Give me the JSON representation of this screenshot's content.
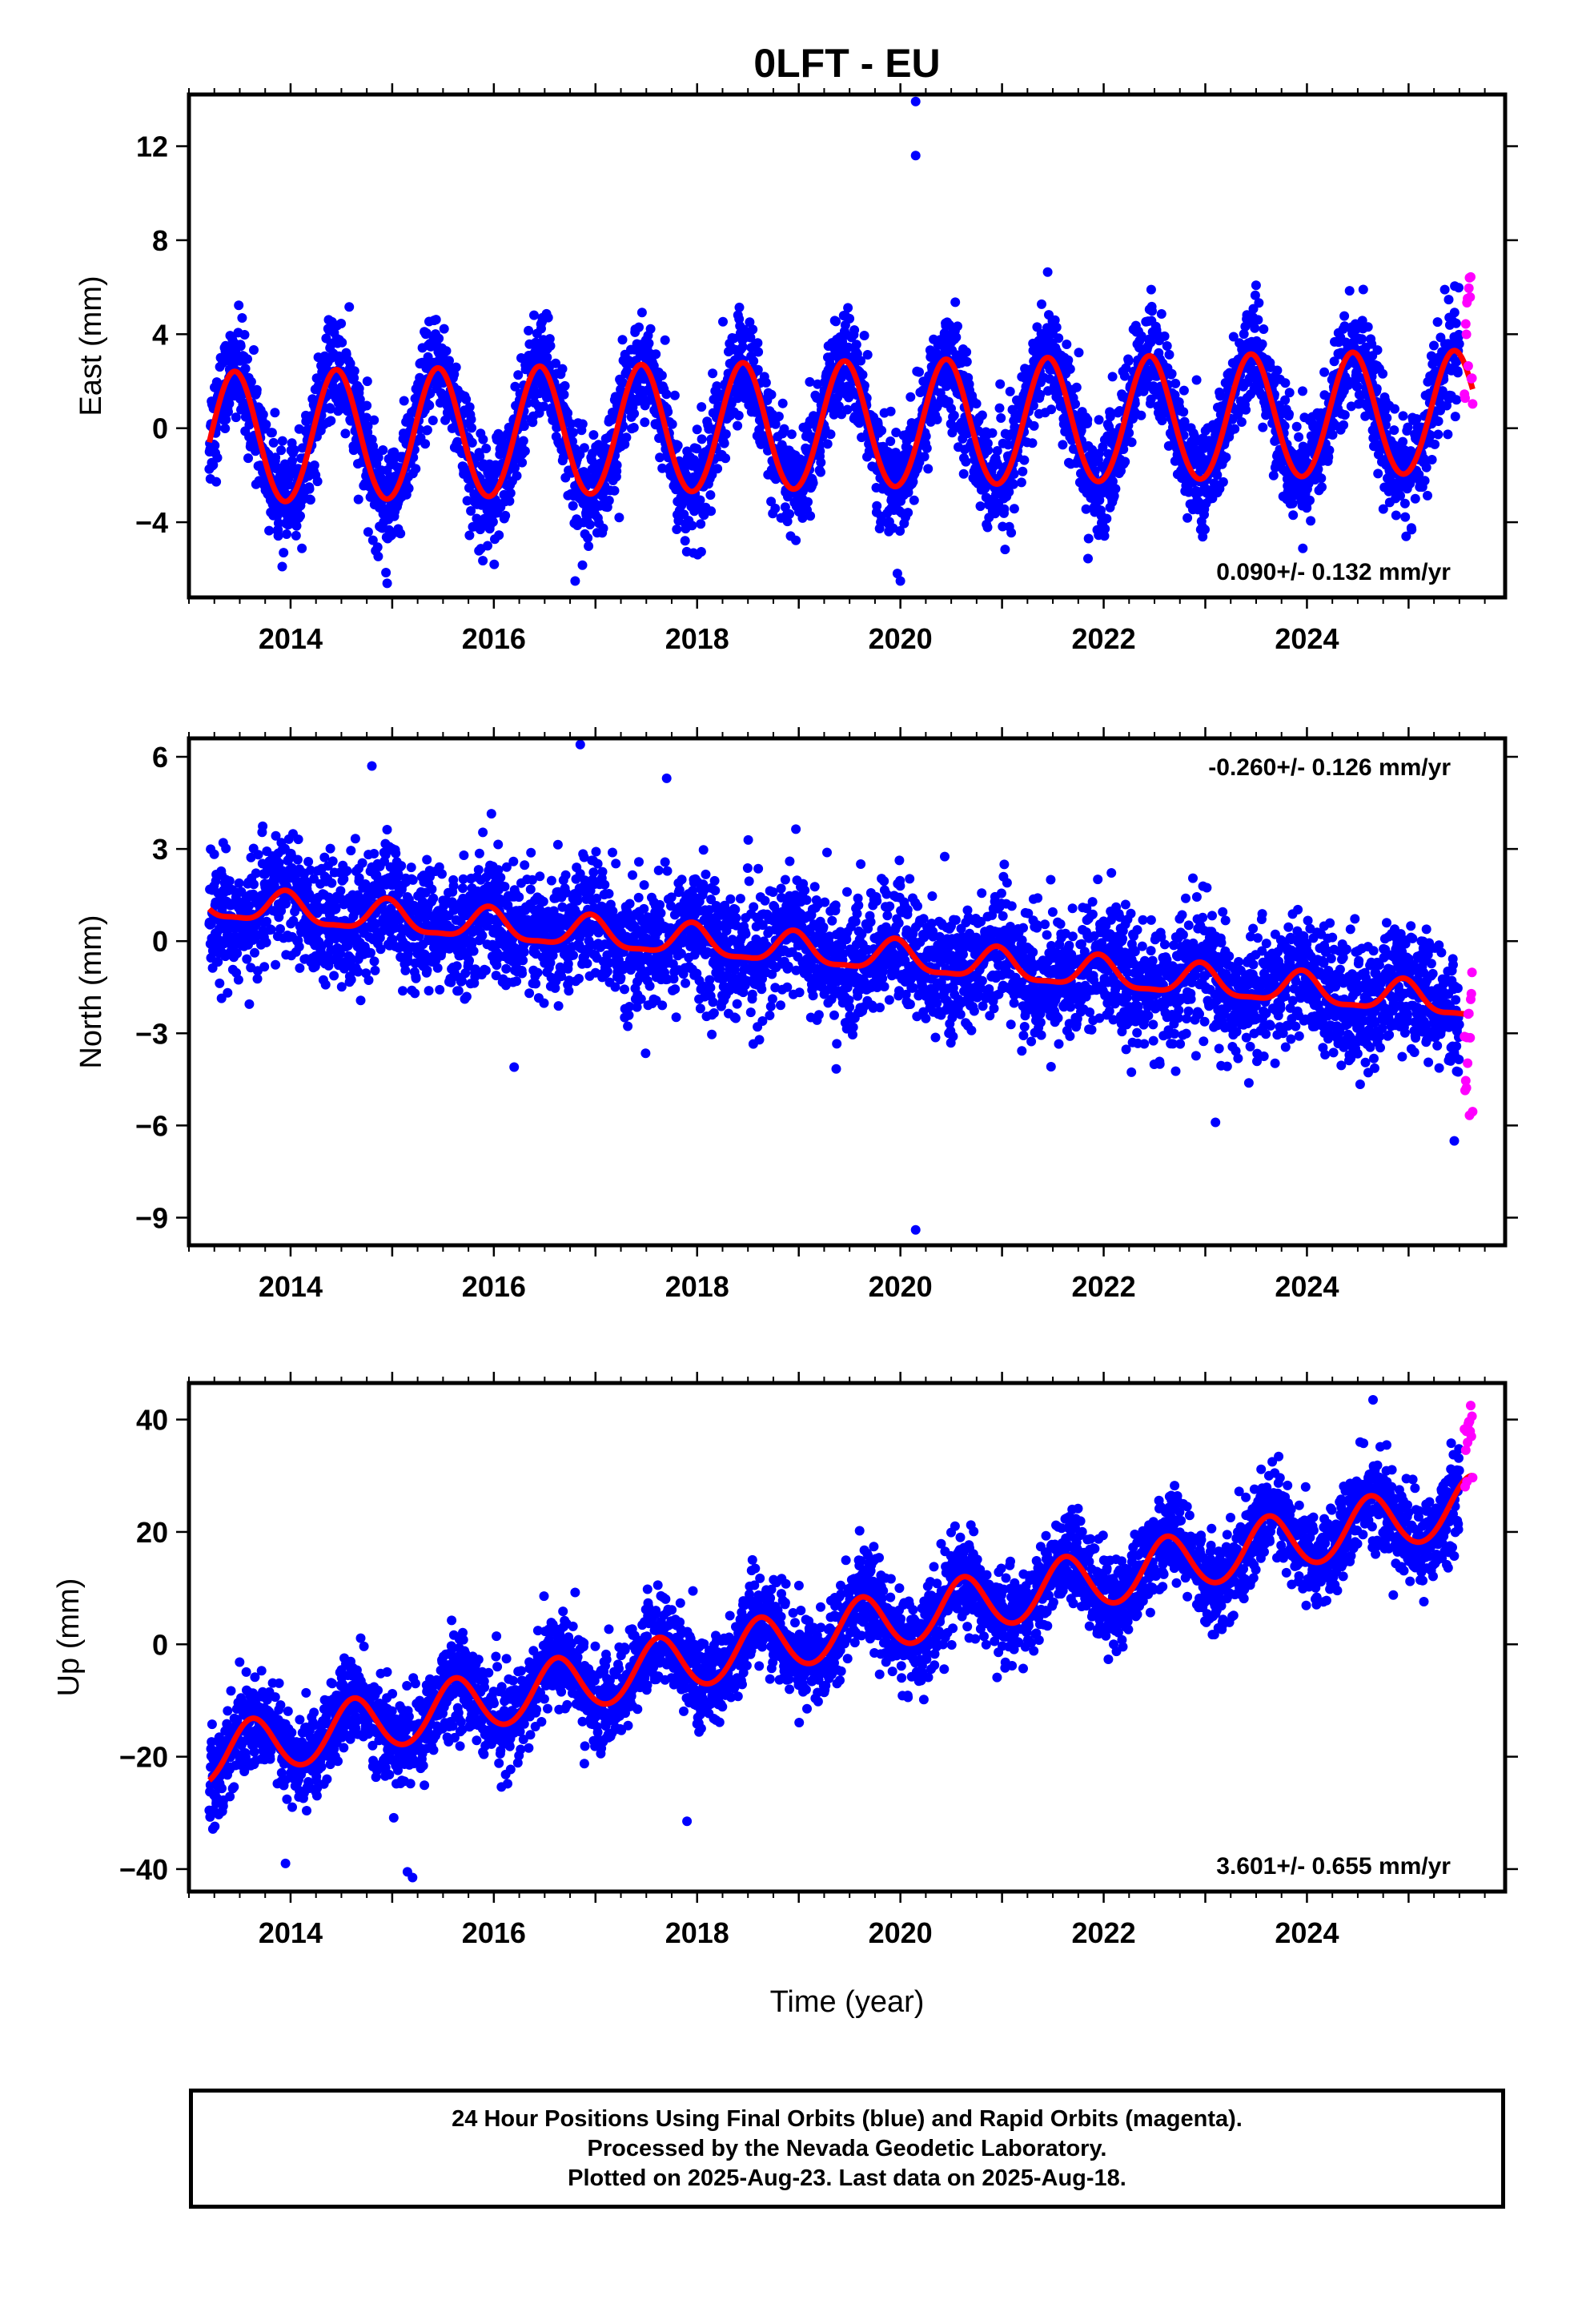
{
  "title": "0LFT - EU",
  "xlabel": "Time (year)",
  "footer": {
    "line1": "24 Hour Positions Using Final Orbits (blue) and Rapid Orbits (magenta).",
    "line2": "Processed by the Nevada Geodetic Laboratory.",
    "line3": "Plotted on 2025-Aug-23. Last data on 2025-Aug-18."
  },
  "colors": {
    "final": "#0000ff",
    "rapid": "#ff00ff",
    "model": "#ff0000",
    "frame": "#000000"
  },
  "chart_data": [
    {
      "type": "scatter",
      "panel": "east",
      "ylabel": "East (mm)",
      "xlim": [
        2013.0,
        2025.95
      ],
      "ylim": [
        -7.2,
        14.2
      ],
      "yticks": [
        -4,
        0,
        4,
        8,
        12
      ],
      "xticks": [
        2014,
        2016,
        2018,
        2020,
        2022,
        2024
      ],
      "rate_label": "0.090+/- 0.132 mm/yr",
      "rate_position": "bottom-right",
      "series": [
        {
          "name": "Final Orbits",
          "color": "#0000ff",
          "kind": "daily",
          "x_range": [
            2013.2,
            2025.5
          ],
          "model": {
            "offset": -0.5,
            "trend_per_yr": 0.09,
            "annual_amp_start": 2.8,
            "annual_amp_end": 2.6,
            "annual_peak": 0.45,
            "semiannual_amp": 0.1
          },
          "scatter_sd": 1.1,
          "outliers": [
            [
              2020.15,
              13.9
            ],
            [
              2020.15,
              11.6
            ],
            [
              2014.95,
              -6.6
            ],
            [
              2016.8,
              -6.5
            ],
            [
              2020.0,
              -6.5
            ]
          ]
        },
        {
          "name": "Rapid Orbits",
          "color": "#ff00ff",
          "kind": "daily",
          "x_range": [
            2025.55,
            2025.63
          ],
          "y_range": [
            0.5,
            6.5
          ]
        },
        {
          "name": "Model",
          "color": "#ff0000",
          "kind": "line"
        }
      ]
    },
    {
      "type": "scatter",
      "panel": "north",
      "ylabel": "North (mm)",
      "xlim": [
        2013.0,
        2025.95
      ],
      "ylim": [
        -9.9,
        6.6
      ],
      "yticks": [
        -9,
        -6,
        -3,
        0,
        3,
        6
      ],
      "xticks": [
        2014,
        2016,
        2018,
        2020,
        2022,
        2024
      ],
      "rate_label": "-0.260+/- 0.126 mm/yr",
      "rate_position": "top-right",
      "series": [
        {
          "name": "Final Orbits",
          "color": "#0000ff",
          "kind": "daily",
          "x_range": [
            2013.2,
            2025.5
          ],
          "model": {
            "offset": 1.2,
            "trend_per_yr": -0.26,
            "annual_amp_start": 0.5,
            "annual_amp_end": 0.5,
            "annual_peak": 0.95,
            "semiannual_amp": 0.15
          },
          "scatter_sd": 1.0,
          "outliers": [
            [
              2014.8,
              5.7
            ],
            [
              2016.85,
              6.4
            ],
            [
              2017.7,
              5.3
            ],
            [
              2020.15,
              -9.4
            ],
            [
              2016.2,
              -4.1
            ],
            [
              2023.1,
              -5.9
            ],
            [
              2025.45,
              -6.5
            ]
          ]
        },
        {
          "name": "Rapid Orbits",
          "color": "#ff00ff",
          "kind": "daily",
          "x_range": [
            2025.55,
            2025.63
          ],
          "y_range": [
            -5.9,
            -0.8
          ]
        },
        {
          "name": "Model",
          "color": "#ff0000",
          "kind": "line"
        }
      ]
    },
    {
      "type": "scatter",
      "panel": "up",
      "ylabel": "Up (mm)",
      "xlim": [
        2013.0,
        2025.95
      ],
      "ylim": [
        -44.0,
        46.5
      ],
      "yticks": [
        -40,
        -20,
        0,
        20,
        40
      ],
      "xticks": [
        2014,
        2016,
        2018,
        2020,
        2022,
        2024
      ],
      "rate_label": "3.601+/- 0.655 mm/yr",
      "rate_position": "bottom-right",
      "series": [
        {
          "name": "Final Orbits",
          "color": "#0000ff",
          "kind": "daily",
          "x_range": [
            2013.2,
            2025.5
          ],
          "model": {
            "offset": -20.0,
            "trend_per_yr": 3.601,
            "annual_amp_start": 5.0,
            "annual_amp_end": 5.0,
            "annual_peak": 0.62,
            "semiannual_amp": 0.3
          },
          "scatter_sd": 4.0,
          "outliers": [
            [
              2015.2,
              -41.5
            ],
            [
              2015.15,
              -40.5
            ],
            [
              2013.95,
              -39.0
            ],
            [
              2024.65,
              43.5
            ],
            [
              2017.9,
              -31.5
            ]
          ]
        },
        {
          "name": "Rapid Orbits",
          "color": "#ff00ff",
          "kind": "daily",
          "x_range": [
            2025.55,
            2025.63
          ],
          "y_range": [
            28.0,
            43.5
          ]
        },
        {
          "name": "Model",
          "color": "#ff0000",
          "kind": "line"
        }
      ]
    }
  ]
}
